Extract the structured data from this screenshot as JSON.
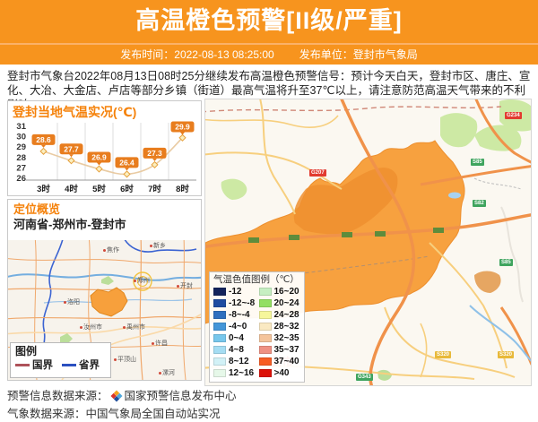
{
  "header": {
    "title": "高温橙色预警[II级/严重]",
    "publish_time_label": "发布时间：",
    "publish_time": "2022-08-13 08:25:00",
    "publish_org_label": "发布单位：",
    "publish_org": "登封市气象局"
  },
  "warning_text": "登封市气象台2022年08月13日08时25分继续发布高温橙色预警信号：预计今天白天，登封市区、唐庄、宣化、大冶、大金店、卢店等部分乡镇（街道）最高气温将升至37℃以上，请注意防范高温天气带来的不利影响。",
  "chart_data": {
    "type": "line",
    "title": "登封当地气温实况(℃)",
    "categories": [
      "3时",
      "4时",
      "5时",
      "6时",
      "7时",
      "8时"
    ],
    "values": [
      28.6,
      27.7,
      26.9,
      26.4,
      27.3,
      29.9
    ],
    "ylim": [
      26,
      31
    ],
    "yticks": [
      26,
      27,
      28,
      29,
      30,
      31
    ],
    "grid": "vertical-only",
    "line_color": "#E9CBA3",
    "marker_fill": "#FBEFC0",
    "marker_stroke": "#E6A13C",
    "label_bg": "#E87D1E"
  },
  "location": {
    "title": "定位概览",
    "path": "河南省-郑州市-登封市",
    "legend_title": "图例",
    "legend_items": [
      {
        "label": "国界",
        "color": "#AE525A"
      },
      {
        "label": "省界",
        "color": "#2B50C0"
      }
    ],
    "cities": [
      "焦作",
      "新乡",
      "郑州",
      "开封",
      "洛阳",
      "汝州市",
      "禹州市",
      "许昌",
      "平顶山",
      "漯河"
    ]
  },
  "map": {
    "legend_title": "气温色值图例（℃）",
    "legend_items": [
      {
        "label": "-12",
        "color": "#14245C"
      },
      {
        "label": "-12~-8",
        "color": "#1E4CA1"
      },
      {
        "label": "-8~-4",
        "color": "#2E6FBE"
      },
      {
        "label": "-4~0",
        "color": "#4496D8"
      },
      {
        "label": "0~4",
        "color": "#77C7EC"
      },
      {
        "label": "4~8",
        "color": "#A5DDF3"
      },
      {
        "label": "8~12",
        "color": "#D2F1F6"
      },
      {
        "label": "12~16",
        "color": "#E6F8E9"
      },
      {
        "label": "16~20",
        "color": "#C6EFC2"
      },
      {
        "label": "20~24",
        "color": "#93DF62"
      },
      {
        "label": "24~28",
        "color": "#F6F69B"
      },
      {
        "label": "28~32",
        "color": "#FAE9C2"
      },
      {
        "label": "32~35",
        "color": "#F4C49C"
      },
      {
        "label": "35~37",
        "color": "#EF9183"
      },
      {
        "label": "37~40",
        "color": "#F75D24"
      },
      {
        "label": ">40",
        "color": "#DC1208"
      }
    ],
    "region_label": "登封市",
    "road_badges": [
      {
        "label": "G207",
        "color": "#E23B30"
      },
      {
        "label": "G234",
        "color": "#E23B30"
      },
      {
        "label": "S85",
        "color": "#3FA45E"
      },
      {
        "label": "S82",
        "color": "#3FA45E"
      },
      {
        "label": "S85",
        "color": "#3FA45E"
      },
      {
        "label": "S320",
        "color": "#E8B93A"
      },
      {
        "label": "S320",
        "color": "#E8B93A"
      },
      {
        "label": "G343",
        "color": "#3FA45E"
      }
    ]
  },
  "footer": {
    "line1_label": "预警信息数据来源：",
    "line1_source": "国家预警信息发布中心",
    "line2": "气象数据来源：中国气象局全国自动站实况"
  }
}
